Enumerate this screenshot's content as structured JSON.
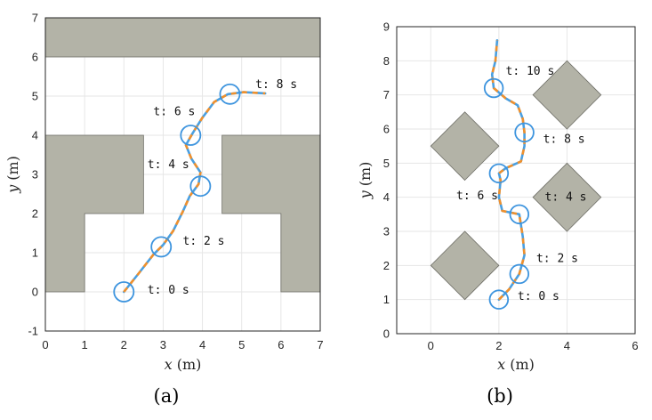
{
  "chart_data": [
    {
      "type": "line",
      "caption": "(a)",
      "xlabel_var": "x",
      "xlabel_unit": "(m)",
      "ylabel_var": "y",
      "ylabel_unit": "(m)",
      "xlim": [
        0,
        7
      ],
      "ylim": [
        -1,
        7
      ],
      "xticks": [
        "0",
        "1",
        "2",
        "3",
        "4",
        "5",
        "6",
        "7"
      ],
      "yticks": [
        "-1",
        "0",
        "1",
        "2",
        "3",
        "4",
        "5",
        "6",
        "7"
      ],
      "grid": true,
      "colors": {
        "obstacle": "#b3b3a7",
        "path_main": "#4a9fe0",
        "path_dash": "#f0902c",
        "circle": "#3d94de",
        "grid": "#e6e6e6"
      },
      "obstacles": [
        [
          [
            0,
            6
          ],
          [
            7,
            6
          ],
          [
            7,
            7
          ],
          [
            0,
            7
          ]
        ],
        [
          [
            0,
            0
          ],
          [
            1,
            0
          ],
          [
            1,
            2
          ],
          [
            2.5,
            2
          ],
          [
            2.5,
            4
          ],
          [
            0,
            4
          ]
        ],
        [
          [
            4.5,
            2
          ],
          [
            6,
            2
          ],
          [
            6,
            0
          ],
          [
            7,
            0
          ],
          [
            7,
            4
          ],
          [
            4.5,
            4
          ]
        ]
      ],
      "path": [
        [
          2,
          0
        ],
        [
          2.4,
          0.5
        ],
        [
          2.75,
          0.95
        ],
        [
          3,
          1.2
        ],
        [
          3.25,
          1.55
        ],
        [
          3.5,
          2.05
        ],
        [
          3.68,
          2.45
        ],
        [
          3.9,
          2.75
        ],
        [
          3.95,
          3.05
        ],
        [
          3.72,
          3.4
        ],
        [
          3.58,
          3.75
        ],
        [
          3.75,
          4.05
        ],
        [
          4.0,
          4.45
        ],
        [
          4.3,
          4.85
        ],
        [
          4.65,
          5.05
        ],
        [
          5.05,
          5.1
        ],
        [
          5.6,
          5.07
        ]
      ],
      "circles": [
        [
          2,
          0
        ],
        [
          2.95,
          1.15
        ],
        [
          3.95,
          2.7
        ],
        [
          3.7,
          4.0
        ],
        [
          4.7,
          5.05
        ]
      ],
      "circle_radius": 0.25,
      "annotations": [
        {
          "text": "t: 0 s",
          "x": 2.6,
          "y": 0.05
        },
        {
          "text": "t: 2 s",
          "x": 3.5,
          "y": 1.3
        },
        {
          "text": "t: 4 s",
          "x": 2.6,
          "y": 3.25
        },
        {
          "text": "t: 6 s",
          "x": 2.75,
          "y": 4.6
        },
        {
          "text": "t: 8 s",
          "x": 5.35,
          "y": 5.3
        }
      ]
    },
    {
      "type": "line",
      "caption": "(b)",
      "xlabel_var": "x",
      "xlabel_unit": "(m)",
      "ylabel_var": "y",
      "ylabel_unit": "(m)",
      "xlim": [
        -1,
        6
      ],
      "ylim": [
        0,
        9
      ],
      "xticks": [
        "0",
        "2",
        "4",
        "6"
      ],
      "xtick_values": [
        0,
        2,
        4,
        6
      ],
      "yticks": [
        "0",
        "1",
        "2",
        "3",
        "4",
        "5",
        "6",
        "7",
        "8",
        "9"
      ],
      "grid": true,
      "colors": {
        "obstacle": "#b3b3a7",
        "path_main": "#4a9fe0",
        "path_dash": "#f0902c",
        "circle": "#3d94de",
        "grid": "#e6e6e6"
      },
      "obstacles": [
        [
          [
            1,
            1
          ],
          [
            2,
            2
          ],
          [
            1,
            3
          ],
          [
            0,
            2
          ]
        ],
        [
          [
            1,
            4.5
          ],
          [
            2,
            5.5
          ],
          [
            1,
            6.5
          ],
          [
            0,
            5.5
          ]
        ],
        [
          [
            4,
            3
          ],
          [
            5,
            4
          ],
          [
            4,
            5
          ],
          [
            3,
            4
          ]
        ],
        [
          [
            4,
            6
          ],
          [
            5,
            7
          ],
          [
            4,
            8
          ],
          [
            3,
            7
          ]
        ]
      ],
      "path": [
        [
          2,
          1
        ],
        [
          2.3,
          1.3
        ],
        [
          2.6,
          1.75
        ],
        [
          2.75,
          2.3
        ],
        [
          2.7,
          2.85
        ],
        [
          2.6,
          3.5
        ],
        [
          2.1,
          3.6
        ],
        [
          2.0,
          4.0
        ],
        [
          2.05,
          4.5
        ],
        [
          2.0,
          4.7
        ],
        [
          2.2,
          4.85
        ],
        [
          2.65,
          5.05
        ],
        [
          2.75,
          5.5
        ],
        [
          2.75,
          5.9
        ],
        [
          2.7,
          6.3
        ],
        [
          2.55,
          6.7
        ],
        [
          2.2,
          6.9
        ],
        [
          1.85,
          7.2
        ],
        [
          1.8,
          7.6
        ],
        [
          1.9,
          8.0
        ],
        [
          1.95,
          8.6
        ]
      ],
      "circles": [
        [
          2,
          1
        ],
        [
          2.6,
          1.75
        ],
        [
          2.6,
          3.5
        ],
        [
          2.0,
          4.7
        ],
        [
          2.75,
          5.9
        ],
        [
          1.85,
          7.2
        ]
      ],
      "circle_radius": 0.27,
      "annotations": [
        {
          "text": "t: 0 s",
          "x": 2.55,
          "y": 1.1
        },
        {
          "text": "t: 2 s",
          "x": 3.1,
          "y": 2.2
        },
        {
          "text": "t: 4 s",
          "x": 3.35,
          "y": 4.0
        },
        {
          "text": "t: 6 s",
          "x": 0.75,
          "y": 4.05
        },
        {
          "text": "t: 8 s",
          "x": 3.3,
          "y": 5.7
        },
        {
          "text": "t: 10 s",
          "x": 2.2,
          "y": 7.7
        }
      ]
    }
  ]
}
